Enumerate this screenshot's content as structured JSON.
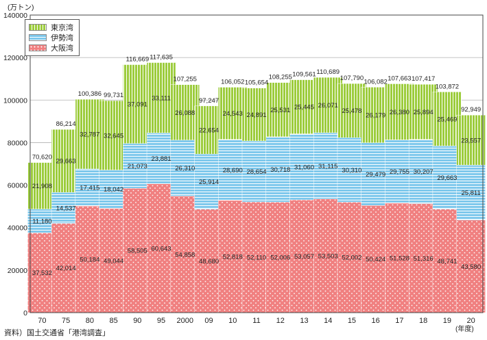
{
  "chart_data": {
    "type": "bar",
    "stacked": true,
    "ylabel": "(万トン)",
    "xunit": "(年度)",
    "ylim": [
      0,
      140000
    ],
    "yticks": [
      "0",
      "20000",
      "40000",
      "60000",
      "80000",
      "100000",
      "120000",
      "140000"
    ],
    "grid": true,
    "legend_position": "top-left",
    "categories": [
      "70",
      "75",
      "80",
      "85",
      "90",
      "95",
      "2000",
      "09",
      "10",
      "11",
      "12",
      "13",
      "14",
      "15",
      "16",
      "17",
      "18",
      "19",
      "20"
    ],
    "series": [
      {
        "name": "大阪湾",
        "color": "#f08080",
        "values": [
          37532,
          42014,
          50184,
          49044,
          58505,
          60643,
          54858,
          48680,
          52818,
          52110,
          52006,
          53057,
          53503,
          52002,
          50424,
          51528,
          51316,
          48741,
          43580
        ],
        "labels": [
          "37,532",
          "42,014",
          "50,184",
          "49,044",
          "58,505",
          "60,643",
          "54,858",
          "48,680",
          "52,818",
          "52,110",
          "52,006",
          "53,057",
          "53,503",
          "52,002",
          "50,424",
          "51,528",
          "51,316",
          "48,741",
          "43,580"
        ]
      },
      {
        "name": "伊勢湾",
        "color": "#7ec8ec",
        "values": [
          11180,
          14537,
          17415,
          18042,
          21073,
          23881,
          26310,
          25914,
          28690,
          28654,
          30718,
          31060,
          31115,
          30310,
          29479,
          29755,
          30207,
          29663,
          25811
        ],
        "labels": [
          "11,180",
          "14,537",
          "17,415",
          "18,042",
          "21,073",
          "23,881",
          "26,310",
          "25,914",
          "28,690",
          "28,654",
          "30,718",
          "31,060",
          "31,115",
          "30,310",
          "29,479",
          "29,755",
          "30,207",
          "29,663",
          "25,811"
        ]
      },
      {
        "name": "東京湾",
        "color": "#9ccc3c",
        "values": [
          21908,
          29663,
          32787,
          32645,
          37091,
          33111,
          26088,
          22654,
          24543,
          24891,
          25531,
          25445,
          26071,
          25478,
          26179,
          26380,
          25894,
          25469,
          23557
        ],
        "labels": [
          "21,908",
          "29,663",
          "32,787",
          "32,645",
          "37,091",
          "33,111",
          "26,088",
          "22,654",
          "24,543",
          "24,891",
          "25,531",
          "25,445",
          "26,071",
          "25,478",
          "26,179",
          "26,380",
          "25,894",
          "25,469",
          "23,557"
        ]
      }
    ],
    "totals": [
      70620,
      86214,
      100386,
      99731,
      116669,
      117635,
      107255,
      97247,
      106052,
      105654,
      108255,
      109561,
      110689,
      107790,
      106082,
      107663,
      107417,
      103872,
      92949
    ],
    "total_labels": [
      "70,620",
      "86,214",
      "100,386",
      "99,731",
      "116,669",
      "117,635",
      "107,255",
      "97,247",
      "106,052",
      "105,654",
      "108,255",
      "109,561",
      "110,689",
      "107,790",
      "106,082",
      "107,663",
      "107,417",
      "103,872",
      "92,949"
    ]
  },
  "legend": {
    "items": [
      {
        "label": "東京湾",
        "color": "#9ccc3c"
      },
      {
        "label": "伊勢湾",
        "color": "#7ec8ec"
      },
      {
        "label": "大阪湾",
        "color": "#f08080"
      }
    ]
  },
  "source_note": "資料）国土交通省「港湾調査」"
}
